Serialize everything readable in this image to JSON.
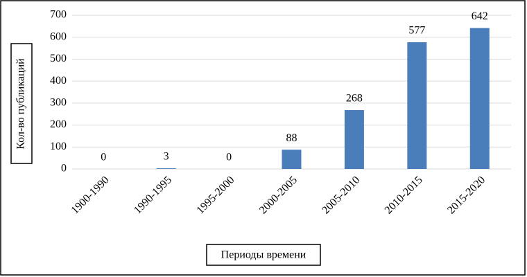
{
  "chart_data": {
    "type": "bar",
    "categories": [
      "1900-1990",
      "1990-1995",
      "1995-2000",
      "2000-2005",
      "2005-2010",
      "2010-2015",
      "2015-2020"
    ],
    "values": [
      0,
      3,
      0,
      88,
      268,
      577,
      642
    ],
    "color": "#4a7ebb",
    "ylim": [
      0,
      700
    ],
    "yticks": [
      0,
      100,
      200,
      300,
      400,
      500,
      600,
      700
    ],
    "grid": true,
    "y_label": "Кол-во публикаций",
    "x_label": "Периоды времени"
  }
}
